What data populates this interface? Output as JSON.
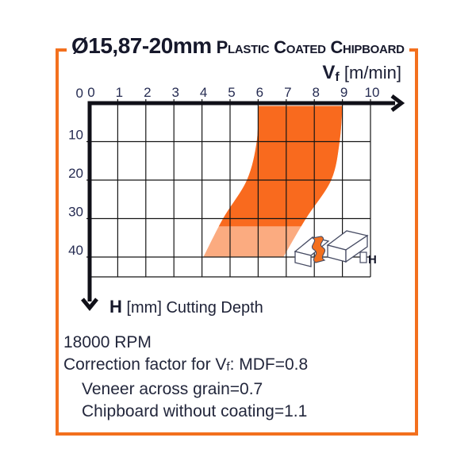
{
  "header": {
    "diameter_range": "Ø15,87-20mm",
    "material": "Plastic Coated Chipboard"
  },
  "chart_data": {
    "type": "area",
    "title": "Feed speed vs cutting depth operating band",
    "x_axis": {
      "label_symbol": "V",
      "label_sub": "f",
      "label_unit": "[m/min]",
      "ticks": [
        0,
        1,
        2,
        3,
        4,
        5,
        6,
        7,
        8,
        9,
        10
      ],
      "range": [
        0,
        10
      ],
      "position": "top"
    },
    "y_axis": {
      "label_symbol": "H",
      "label_bracket": "[mm]",
      "label_text": "Cutting Depth",
      "ticks": [
        0,
        10,
        20,
        30,
        40
      ],
      "range": [
        0,
        45
      ],
      "direction": "downward"
    },
    "grid": true,
    "band": {
      "left_edge": [
        {
          "h": 0,
          "vf": 6.0
        },
        {
          "h": 10,
          "vf": 5.95
        },
        {
          "h": 20,
          "vf": 5.6
        },
        {
          "h": 30,
          "vf": 4.75
        },
        {
          "h": 40,
          "vf": 4.05
        }
      ],
      "right_edge": [
        {
          "h": 0,
          "vf": 9.0
        },
        {
          "h": 10,
          "vf": 8.9
        },
        {
          "h": 20,
          "vf": 8.6
        },
        {
          "h": 30,
          "vf": 7.7
        },
        {
          "h": 40,
          "vf": 6.9
        }
      ],
      "shade_transition_h": 32,
      "color_dark": "#f96a1e",
      "color_light": "#fbab80"
    }
  },
  "illustration": {
    "label": "H"
  },
  "notes": {
    "rpm": "18000 RPM",
    "correction_prefix": "Correction factor for V",
    "correction_sub": "f",
    "correction_suffix": ": MDF=0.8",
    "veneer": "Veneer across grain=0.7",
    "chipboard": "Chipboard without coating=1.1"
  },
  "colors": {
    "border": "#f3701e",
    "band_dark": "#f96a1e",
    "band_light": "#fbab80",
    "grid": "#161616",
    "axis": "#101018",
    "tick_text": "#262c52",
    "outline": "#464b63"
  }
}
